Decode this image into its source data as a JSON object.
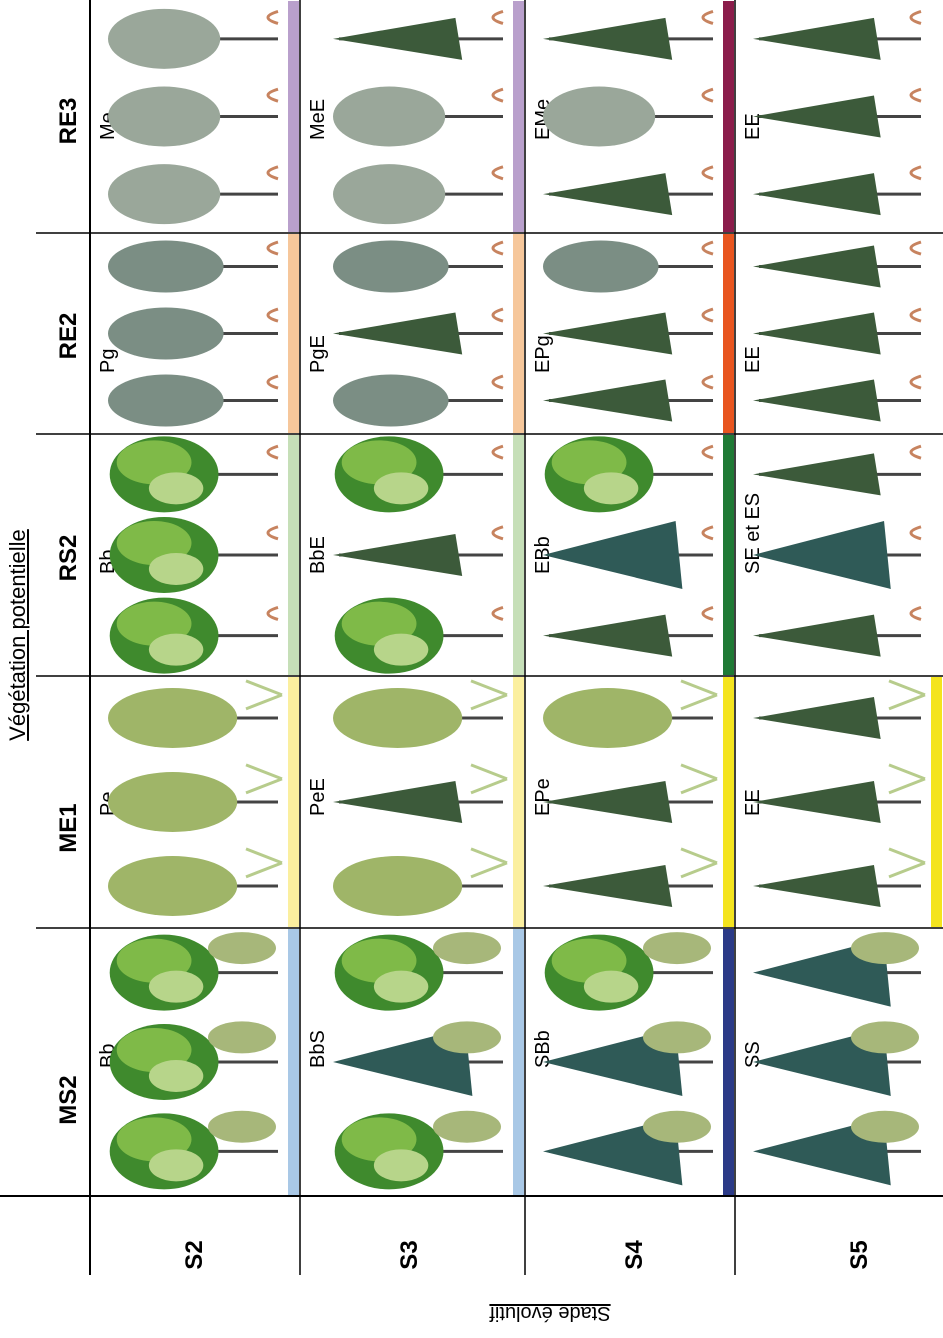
{
  "axis_vegetation": "Végétation potentielle",
  "axis_stage": "Stade évolutif",
  "columns": [
    {
      "label": "MS2"
    },
    {
      "label": "ME1"
    },
    {
      "label": "RS2"
    },
    {
      "label": "RE2"
    },
    {
      "label": "RE3"
    }
  ],
  "rows": [
    {
      "label": "S2"
    },
    {
      "label": "S3"
    },
    {
      "label": "S4"
    },
    {
      "label": "S5"
    }
  ],
  "cells": [
    [
      {
        "code": "Bb",
        "color": "#a9c8e6",
        "trees": [
          "broadleaf",
          "broadleaf",
          "broadleaf"
        ],
        "under": "fern"
      },
      {
        "code": "BbS",
        "color": "#a9c8e6",
        "trees": [
          "broadleaf",
          "spruce",
          "broadleaf"
        ],
        "under": "fern"
      },
      {
        "code": "SBb",
        "color": "#2b3a87",
        "trees": [
          "spruce",
          "spruce",
          "broadleaf"
        ],
        "under": "fern"
      },
      {
        "code": "SS",
        "color": "#ffffff",
        "trees": [
          "spruce",
          "spruce",
          "spruce"
        ],
        "under": "fern"
      }
    ],
    [
      {
        "code": "Pe",
        "color": "#fbef9f",
        "trees": [
          "aspen",
          "aspen",
          "aspen"
        ],
        "under": "seedling"
      },
      {
        "code": "PeE",
        "color": "#fbef9f",
        "trees": [
          "aspen",
          "fir",
          "aspen"
        ],
        "under": "seedling"
      },
      {
        "code": "EPe",
        "color": "#f4e41e",
        "trees": [
          "fir",
          "fir",
          "aspen"
        ],
        "under": "seedling"
      },
      {
        "code": "EE",
        "color": "#f4e41e",
        "trees": [
          "fir",
          "fir",
          "fir"
        ],
        "under": "seedling"
      }
    ],
    [
      {
        "code": "Bb",
        "color": "#c6dfb8",
        "trees": [
          "broadleaf",
          "broadleaf",
          "broadleaf"
        ],
        "under": "sprout"
      },
      {
        "code": "BbE",
        "color": "#c6dfb8",
        "trees": [
          "broadleaf",
          "fir",
          "broadleaf"
        ],
        "under": "sprout"
      },
      {
        "code": "EBb",
        "color": "#1f7a35",
        "trees": [
          "fir",
          "spruce",
          "broadleaf"
        ],
        "under": "sprout"
      },
      {
        "code": "SE et ES",
        "color": "#ffffff",
        "trees": [
          "fir",
          "spruce",
          "fir"
        ],
        "under": "sprout"
      }
    ],
    [
      {
        "code": "Pg",
        "color": "#f6c79b",
        "trees": [
          "birch",
          "birch",
          "birch"
        ],
        "under": "sprout"
      },
      {
        "code": "PgE",
        "color": "#f6c79b",
        "trees": [
          "birch",
          "fir",
          "birch"
        ],
        "under": "sprout"
      },
      {
        "code": "EPg",
        "color": "#e8551f",
        "trees": [
          "fir",
          "fir",
          "birch"
        ],
        "under": "sprout"
      },
      {
        "code": "EE",
        "color": "#ffffff",
        "trees": [
          "fir",
          "fir",
          "fir"
        ],
        "under": "sprout"
      }
    ],
    [
      {
        "code": "Me",
        "color": "#b9a0cc",
        "trees": [
          "maple",
          "maple",
          "maple"
        ],
        "under": "sprout"
      },
      {
        "code": "MeE",
        "color": "#b9a0cc",
        "trees": [
          "maple",
          "maple",
          "fir"
        ],
        "under": "sprout"
      },
      {
        "code": "EMe",
        "color": "#8b1d4b",
        "trees": [
          "fir",
          "maple",
          "fir"
        ],
        "under": "sprout"
      },
      {
        "code": "EE",
        "color": "#ffffff",
        "trees": [
          "fir",
          "fir",
          "fir"
        ],
        "under": "sprout"
      }
    ]
  ],
  "palette": {
    "broadleaf": [
      "#3f8a2d",
      "#7fba48",
      "#b7d58a"
    ],
    "spruce": "#2f5a57",
    "fir": "#3c5a3a",
    "aspen": "#9fb568",
    "birch": "#7b8e84",
    "maple": "#9aa79a",
    "fern": "#a7b77a",
    "seedling": "#b7cc8c",
    "sprout": "#c7835f",
    "trunk": "#444444"
  }
}
